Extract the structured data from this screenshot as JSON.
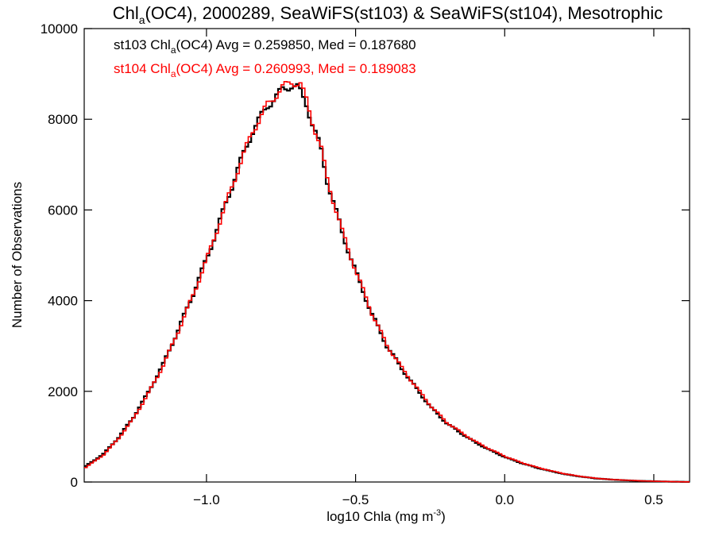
{
  "chart_data": {
    "type": "line",
    "title": {
      "pre": "Chl",
      "sub": "a",
      "post": "(OC4), 2000289, SeaWiFS(st103) & SeaWiFS(st104), Mesotrophic"
    },
    "xlabel": {
      "pre": "log10 Chla (mg m",
      "sup": "-3",
      "post": ")"
    },
    "ylabel": "Number of Observations",
    "xlim": [
      -1.41,
      0.62
    ],
    "ylim": [
      0,
      10000
    ],
    "xticks": [
      -1.0,
      -0.5,
      0.0,
      0.5
    ],
    "xtick_labels": [
      "−1.0",
      "−0.5",
      "0.0",
      "0.5"
    ],
    "yticks": [
      0,
      2000,
      4000,
      6000,
      8000,
      10000
    ],
    "ytick_labels": [
      "0",
      "2000",
      "4000",
      "6000",
      "8000",
      "10000"
    ],
    "grid": false,
    "legend_position": "top-left",
    "x": [
      -1.41,
      -1.35,
      -1.3,
      -1.25,
      -1.2,
      -1.15,
      -1.1,
      -1.05,
      -1.0,
      -0.95,
      -0.9,
      -0.85,
      -0.8,
      -0.75,
      -0.72,
      -0.7,
      -0.69,
      -0.67,
      -0.65,
      -0.62,
      -0.6,
      -0.55,
      -0.5,
      -0.45,
      -0.4,
      -0.35,
      -0.3,
      -0.25,
      -0.2,
      -0.15,
      -0.1,
      -0.05,
      0.0,
      0.05,
      0.1,
      0.15,
      0.2,
      0.25,
      0.3,
      0.35,
      0.4,
      0.45,
      0.5,
      0.55,
      0.6
    ],
    "series": [
      {
        "name": "st103",
        "color": "#000000",
        "values": [
          350,
          620,
          980,
          1430,
          1980,
          2600,
          3350,
          4150,
          5000,
          5950,
          6900,
          7750,
          8300,
          8650,
          8750,
          8700,
          8600,
          8350,
          7900,
          7300,
          6650,
          5500,
          4550,
          3700,
          3000,
          2500,
          2050,
          1630,
          1300,
          1070,
          860,
          690,
          540,
          420,
          320,
          240,
          170,
          120,
          80,
          55,
          38,
          25,
          15,
          8,
          3
        ]
      },
      {
        "name": "st104",
        "color": "#ff0000",
        "values": [
          320,
          600,
          960,
          1400,
          1950,
          2570,
          3320,
          4120,
          4980,
          5930,
          6880,
          7740,
          8320,
          8700,
          8820,
          8800,
          8780,
          8420,
          7960,
          7340,
          6680,
          5530,
          4580,
          3720,
          3020,
          2520,
          2080,
          1660,
          1320,
          1090,
          880,
          710,
          555,
          430,
          330,
          248,
          176,
          124,
          83,
          57,
          40,
          26,
          16,
          9,
          3
        ]
      }
    ],
    "annotations": [
      {
        "name_pre": "st103 Chl",
        "name_sub": "a",
        "name_post": "(OC4) Avg = 0.259850, Med = 0.187680",
        "color": "#000000"
      },
      {
        "name_pre": "st104 Chl",
        "name_sub": "a",
        "name_post": "(OC4) Avg = 0.260993, Med = 0.189083",
        "color": "#ff0000"
      }
    ]
  }
}
